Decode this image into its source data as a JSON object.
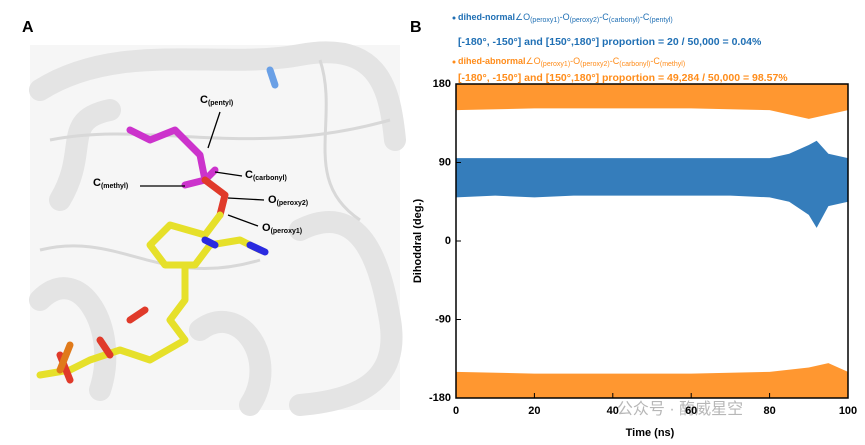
{
  "panel_a": {
    "label": "A",
    "atoms": [
      {
        "base": "C",
        "sub": "(pentyl)"
      },
      {
        "base": "C",
        "sub": "(carbonyl)"
      },
      {
        "base": "C",
        "sub": "(methyl)"
      },
      {
        "base": "O",
        "sub": "(peroxy2)"
      },
      {
        "base": "O",
        "sub": "(peroxy1)"
      }
    ]
  },
  "watermark": "公众号 · 酶威星空",
  "chart_data": {
    "type": "range",
    "panel_label": "B",
    "xlabel": "Time (ns)",
    "ylabel": "Dihoddral (deg.)",
    "xlim": [
      0,
      100
    ],
    "xticks": [
      0,
      20,
      40,
      60,
      80,
      100
    ],
    "ylim": [
      -180,
      180
    ],
    "yticks": [
      -180,
      -90,
      0,
      90,
      180
    ],
    "series": [
      {
        "name": "dihed-normal",
        "color": "#1f6fb4",
        "definition": [
          {
            "base": "∠O",
            "sub": "(peroxy1)"
          },
          {
            "base": "-O",
            "sub": "(peroxy2)"
          },
          {
            "base": "-C",
            "sub": "(carbonyl)"
          },
          {
            "base": "-C",
            "sub": "(pentyl)"
          }
        ],
        "proportion": "[-180°, -150°] and [150°,180°] proportion = 20 / 50,000 = 0.04%",
        "bands": [
          {
            "x": [
              0,
              10,
              20,
              30,
              40,
              50,
              60,
              70,
              80,
              85,
              90,
              92,
              95,
              100
            ],
            "low": [
              50,
              52,
              50,
              52,
              52,
              52,
              52,
              52,
              50,
              45,
              30,
              15,
              40,
              45
            ],
            "high": [
              95,
              95,
              95,
              95,
              95,
              95,
              95,
              95,
              95,
              100,
              110,
              115,
              100,
              95
            ]
          }
        ]
      },
      {
        "name": "dihed-abnormal",
        "color": "#ff8c1a",
        "definition": [
          {
            "base": "∠O",
            "sub": "(peroxy1)"
          },
          {
            "base": "-O",
            "sub": "(peroxy2)"
          },
          {
            "base": "-C",
            "sub": "(carbonyl)"
          },
          {
            "base": "-C",
            "sub": "(methyl)"
          }
        ],
        "proportion": "[-180°, -150°] and [150°,180°] proportion = 49,284 / 50,000 = 98.57%",
        "bands": [
          {
            "x": [
              0,
              20,
              40,
              60,
              80,
              90,
              95,
              100
            ],
            "low": [
              150,
              152,
              152,
              152,
              150,
              140,
              145,
              150
            ],
            "high": [
              180,
              180,
              180,
              180,
              180,
              180,
              180,
              180
            ]
          },
          {
            "x": [
              0,
              20,
              40,
              60,
              80,
              90,
              95,
              100
            ],
            "low": [
              -180,
              -180,
              -180,
              -180,
              -180,
              -180,
              -180,
              -180
            ],
            "high": [
              -150,
              -152,
              -152,
              -152,
              -150,
              -145,
              -140,
              -150
            ]
          }
        ]
      }
    ]
  }
}
